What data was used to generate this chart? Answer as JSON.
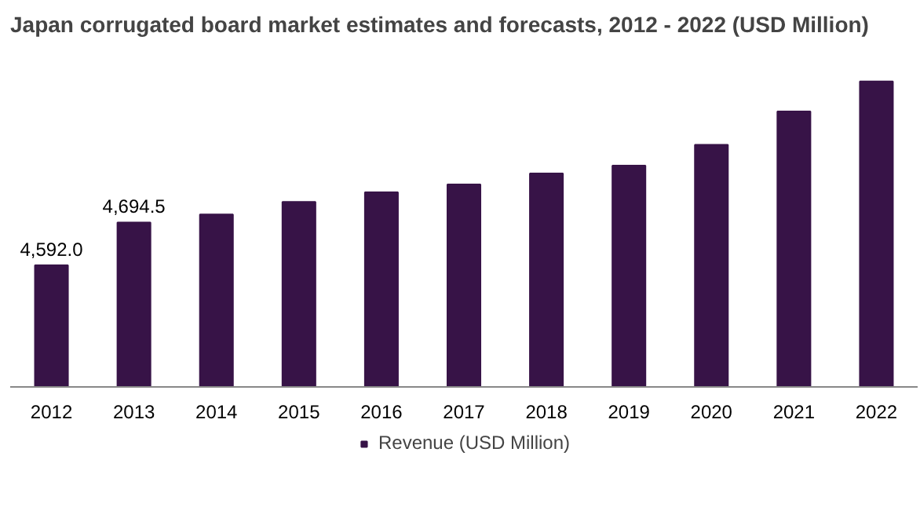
{
  "chart_data": {
    "type": "bar",
    "title": "Japan corrugated board market estimates and forecasts, 2012 - 2022 (USD Million)",
    "categories": [
      "2012",
      "2013",
      "2014",
      "2015",
      "2016",
      "2017",
      "2018",
      "2019",
      "2020",
      "2021",
      "2022"
    ],
    "series": [
      {
        "name": "Revenue (USD Million)",
        "color": "#371347",
        "values": [
          4592.0,
          4694.5,
          4714,
          4744,
          4767,
          4786,
          4812,
          4831,
          4881,
          4961,
          5033
        ],
        "value_labels": [
          "4,592.0",
          "4,694.5",
          null,
          null,
          null,
          null,
          null,
          null,
          null,
          null,
          null
        ]
      }
    ],
    "ylim": [
      4300,
      5033
    ],
    "tick_labels": "x",
    "grid": false,
    "legend": "bottom"
  }
}
